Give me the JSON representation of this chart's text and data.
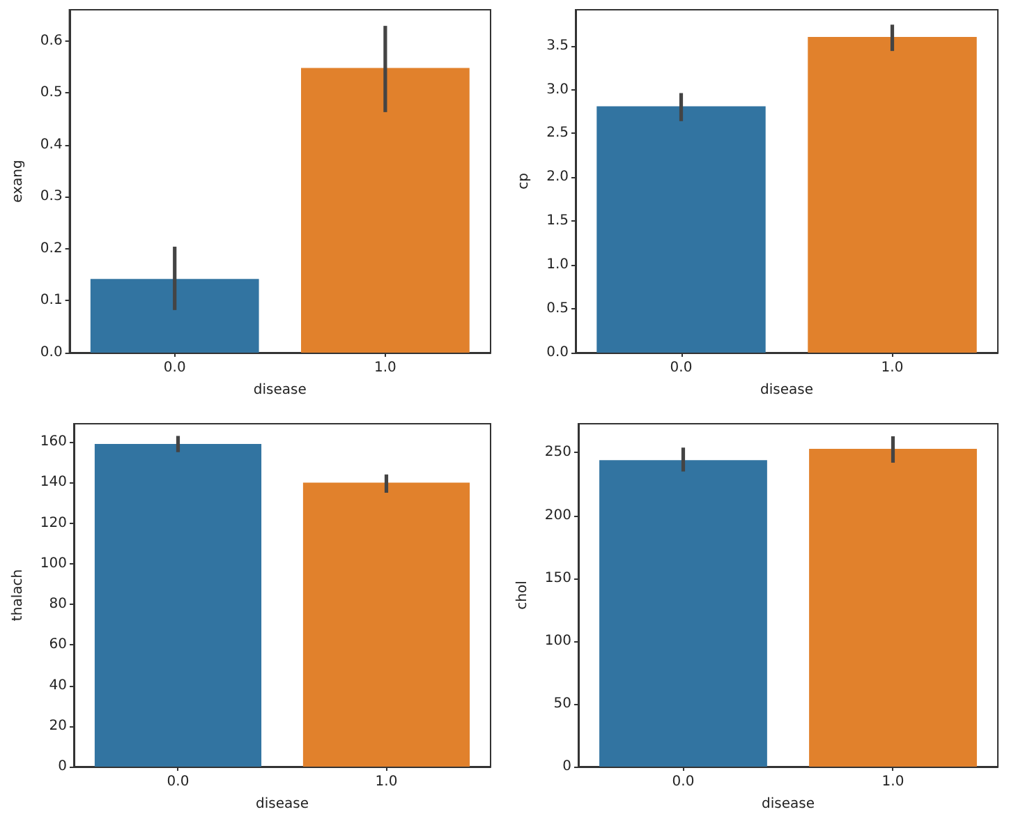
{
  "chart_data": [
    {
      "type": "bar",
      "xlabel": "disease",
      "ylabel": "exang",
      "categories": [
        "0.0",
        "1.0"
      ],
      "values": [
        0.142,
        0.548
      ],
      "colors": [
        "#3274a1",
        "#e1812c"
      ],
      "errors": [
        [
          0.082,
          0.204
        ],
        [
          0.463,
          0.629
        ]
      ],
      "ylim": [
        0,
        0.66
      ],
      "yticks": [
        {
          "value": 0,
          "label": "0.0"
        },
        0.1,
        0.2,
        0.3,
        0.4,
        0.5,
        0.6
      ],
      "grid": false
    },
    {
      "type": "bar",
      "xlabel": "disease",
      "ylabel": "cp",
      "categories": [
        "0.0",
        "1.0"
      ],
      "values": [
        2.81,
        3.6
      ],
      "colors": [
        "#3274a1",
        "#e1812c"
      ],
      "errors": [
        [
          2.64,
          2.96
        ],
        [
          3.44,
          3.74
        ]
      ],
      "ylim": [
        0,
        3.91
      ],
      "yticks": [
        {
          "value": 0,
          "label": "0.0"
        },
        0.5,
        {
          "value": 1,
          "label": "1.0"
        },
        1.5,
        {
          "value": 2,
          "label": "2.0"
        },
        2.5,
        {
          "value": 3,
          "label": "3.0"
        },
        3.5
      ],
      "grid": false
    },
    {
      "type": "bar",
      "xlabel": "disease",
      "ylabel": "thalach",
      "categories": [
        "0.0",
        "1.0"
      ],
      "values": [
        159,
        140
      ],
      "colors": [
        "#3274a1",
        "#e1812c"
      ],
      "errors": [
        [
          155,
          163
        ],
        [
          135,
          144
        ]
      ],
      "ylim": [
        0,
        169
      ],
      "yticks": [
        0,
        20,
        40,
        60,
        80,
        100,
        120,
        140,
        160
      ],
      "grid": false
    },
    {
      "type": "bar",
      "xlabel": "disease",
      "ylabel": "chol",
      "categories": [
        "0.0",
        "1.0"
      ],
      "values": [
        244,
        253
      ],
      "colors": [
        "#3274a1",
        "#e1812c"
      ],
      "errors": [
        [
          235,
          254
        ],
        [
          242,
          263
        ]
      ],
      "ylim": [
        0,
        273
      ],
      "yticks": [
        0,
        50,
        100,
        150,
        200,
        250
      ],
      "grid": false
    }
  ]
}
